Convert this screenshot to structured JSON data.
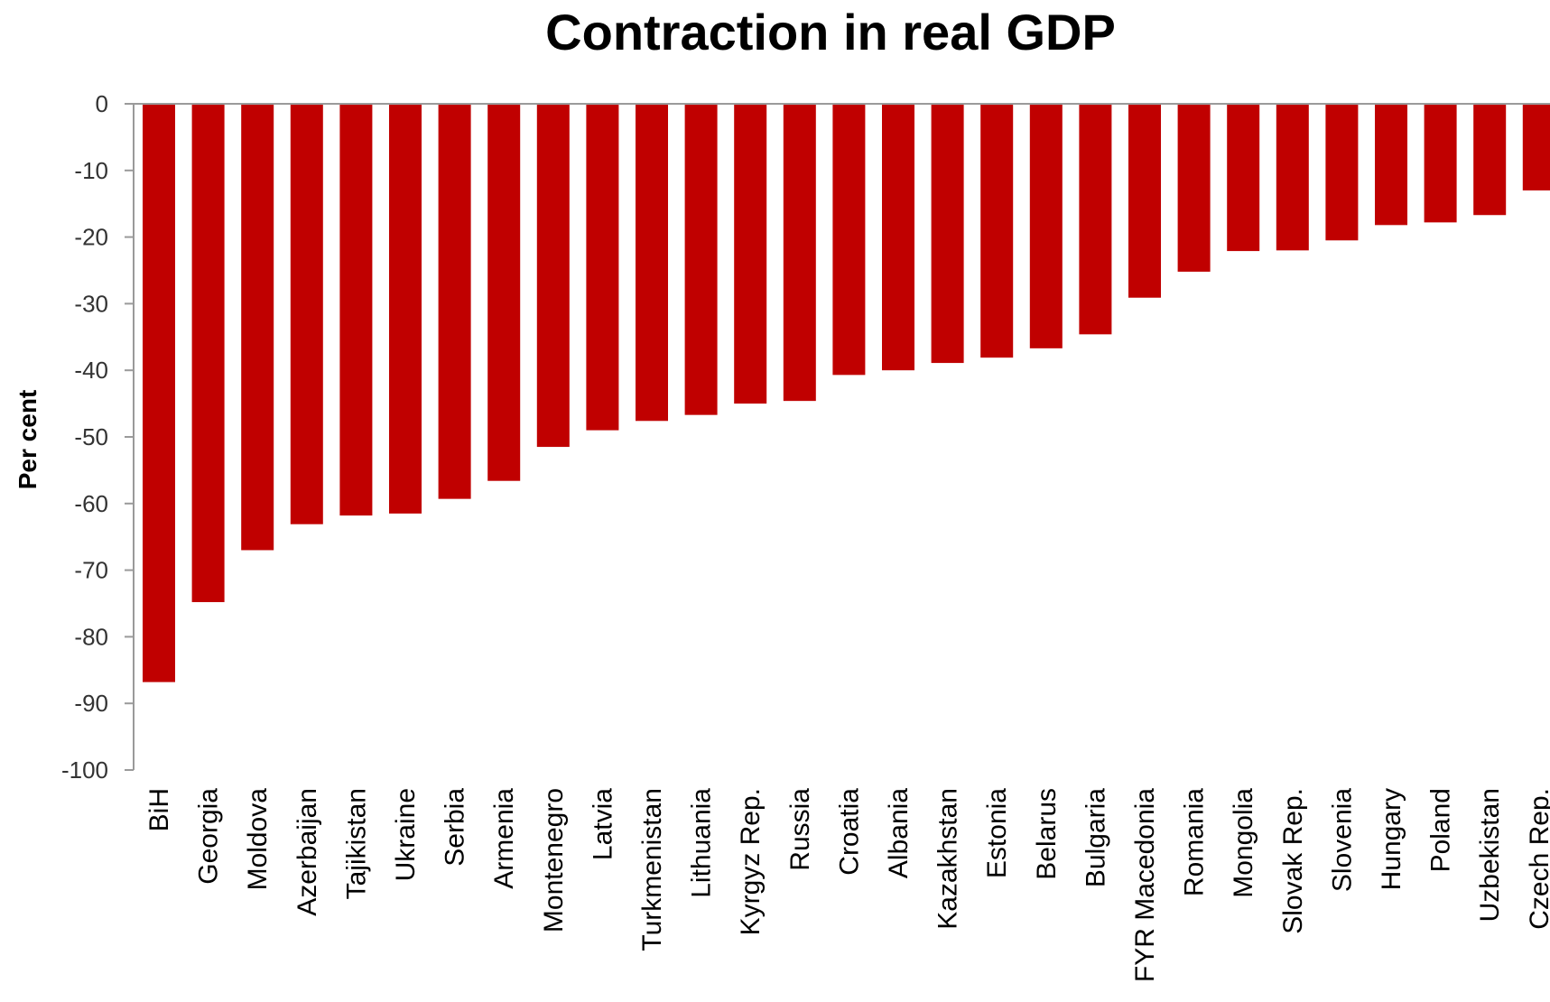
{
  "chart_data": {
    "type": "bar",
    "title": "Contraction in real GDP",
    "xlabel": "",
    "ylabel": "Per cent",
    "ylim": [
      -100,
      0
    ],
    "yticks": [
      0,
      -10,
      -20,
      -30,
      -40,
      -50,
      -60,
      -70,
      -80,
      -90,
      -100
    ],
    "grid": false,
    "legend": "none",
    "bar_color": "#C00000",
    "categories": [
      "BiH",
      "Georgia",
      "Moldova",
      "Azerbaijan",
      "Tajikistan",
      "Ukraine",
      "Serbia",
      "Armenia",
      "Montenegro",
      "Latvia",
      "Turkmenistan",
      "Lithuania",
      "Kyrgyz Rep.",
      "Russia",
      "Croatia",
      "Albania",
      "Kazakhstan",
      "Estonia",
      "Belarus",
      "Bulgaria",
      "FYR Macedonia",
      "Romania",
      "Mongolia",
      "Slovak Rep.",
      "Slovenia",
      "Hungary",
      "Poland",
      "Uzbekistan",
      "Czech Rep."
    ],
    "values": [
      -86.8,
      -74.8,
      -67,
      -63.1,
      -61.8,
      -61.5,
      -59.3,
      -56.6,
      -51.5,
      -49,
      -47.6,
      -46.7,
      -45,
      -44.6,
      -40.7,
      -40,
      -38.9,
      -38.1,
      -36.7,
      -34.6,
      -29.1,
      -25.2,
      -22.1,
      -22,
      -20.5,
      -18.2,
      -17.8,
      -16.7,
      -13
    ]
  }
}
